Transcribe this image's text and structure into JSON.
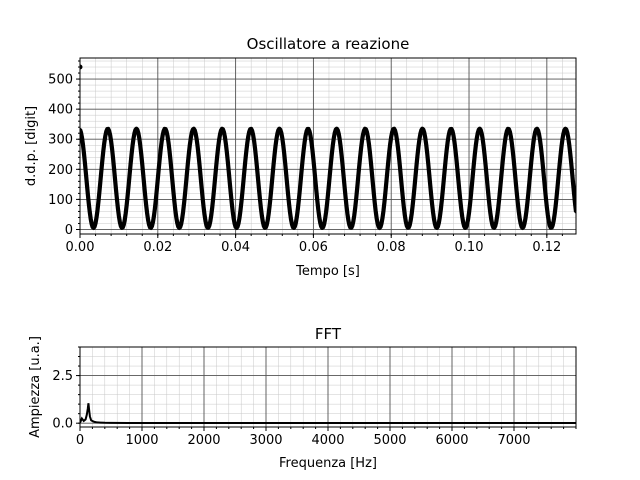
{
  "chart_data": [
    {
      "type": "scatter",
      "title": "Oscillatore a reazione",
      "xlabel": "Tempo [s]",
      "ylabel": "d.d.p. [digit]",
      "xlim": [
        0,
        0.1275
      ],
      "ylim": [
        -15,
        570
      ],
      "xticks": [
        0.0,
        0.02,
        0.04,
        0.06,
        0.08,
        0.1,
        0.12
      ],
      "xtick_labels": [
        "0.00",
        "0.02",
        "0.04",
        "0.06",
        "0.08",
        "0.10",
        "0.12"
      ],
      "yticks": [
        0,
        100,
        200,
        300,
        400,
        500
      ],
      "ytick_labels": [
        "0",
        "100",
        "200",
        "300",
        "400",
        "500"
      ],
      "grid": true,
      "legend": "none",
      "series": [
        {
          "signal": {
            "frequency_hz": 136,
            "offset": 170,
            "amplitude": 165,
            "phase_deg": 100,
            "sample_interval_s": 0.00025,
            "t_start": 0.0,
            "t_end": 0.1275
          },
          "outliers": [
            {
              "x": 0.0,
              "y": 540
            }
          ]
        }
      ]
    },
    {
      "type": "line",
      "title": "FFT",
      "xlabel": "Frequenza [Hz]",
      "ylabel": "Ampiezza [u.a.]",
      "xlim": [
        0,
        8000
      ],
      "ylim": [
        -0.2,
        4.0
      ],
      "xticks": [
        0,
        1000,
        2000,
        3000,
        4000,
        5000,
        6000,
        7000
      ],
      "xtick_labels": [
        "0",
        "1000",
        "2000",
        "3000",
        "4000",
        "5000",
        "6000",
        "7000"
      ],
      "yticks": [
        0.0,
        2.5
      ],
      "ytick_labels": [
        "0.0",
        "2.5"
      ],
      "grid": true,
      "legend": "none",
      "series": [
        {
          "x": [
            0,
            30,
            60,
            90,
            110,
            125,
            136,
            147,
            160,
            180,
            210,
            240,
            280,
            330,
            400,
            500,
            800,
            1500,
            3000,
            5000,
            7000,
            8000
          ],
          "y": [
            0.02,
            0.25,
            0.12,
            0.2,
            0.45,
            0.75,
            1.05,
            0.7,
            0.35,
            0.15,
            0.1,
            0.06,
            0.04,
            0.03,
            0.02,
            0.015,
            0.01,
            0.01,
            0.008,
            0.008,
            0.008,
            0.008
          ]
        }
      ]
    }
  ]
}
